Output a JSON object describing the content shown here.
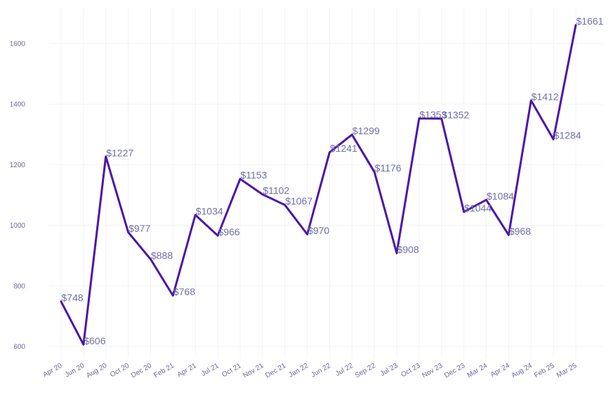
{
  "chart_data": {
    "type": "line",
    "title": "",
    "xlabel": "",
    "ylabel": "",
    "categories": [
      "Apr 20",
      "Jun 20",
      "Aug 20",
      "Oct 20",
      "Dec 20",
      "Feb 21",
      "Apr 21",
      "Jul 21",
      "Oct 21",
      "Nov 21",
      "Dec 21",
      "Jan 22",
      "Jun 22",
      "Jul 22",
      "Sep 22",
      "Jul 23",
      "Oct 23",
      "Nov 23",
      "Dec 23",
      "Mar 24",
      "Apr 24",
      "Aug 24",
      "Feb 25",
      "Mar 25"
    ],
    "series": [
      {
        "values": [
          748,
          606,
          1227,
          977,
          888,
          768,
          1034,
          966,
          1153,
          1102,
          1067,
          970,
          1241,
          1299,
          1176,
          908,
          1353,
          1352,
          1044,
          1084,
          968,
          1412,
          1284,
          1661
        ]
      }
    ],
    "data_labels": [
      "$748",
      "$606",
      "$1227",
      "$977",
      "$888",
      "$768",
      "$1034",
      "$966",
      "$1153",
      "$1102",
      "$1067",
      "$970",
      "$1241",
      "$1299",
      "$1176",
      "$908",
      "$1353",
      "$1352",
      "$1044",
      "$1084",
      "$968",
      "$1412",
      "$1284",
      "$1661"
    ],
    "yticks": [
      600,
      800,
      1000,
      1200,
      1400,
      1600
    ],
    "ylim": [
      560,
      1700
    ],
    "grid": true,
    "legend": "none",
    "line_color": "#4b17a8",
    "label_color": "#7070a8",
    "tick_color": "#6a6aa0"
  }
}
